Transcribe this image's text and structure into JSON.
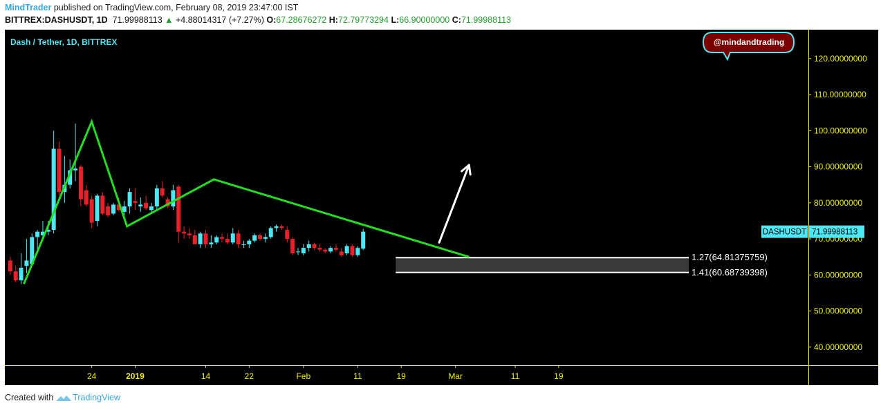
{
  "header": {
    "publisher": "MindTrader",
    "published_text": "published on TradingView.com, February 08, 2019 23:47:00 IST",
    "symbol": "BITTREX:DASHUSDT, 1D",
    "last": "71.99988113",
    "change": "+4.88014317 (+7.27%)",
    "o_label": "O:",
    "o_value": "67.28676272",
    "h_label": "H:",
    "h_value": "72.79773294",
    "l_label": "L:",
    "l_value": "66.90000000",
    "c_label": "C:",
    "c_value": "71.99988113"
  },
  "chart_title": "Dash / Tether, 1D, BITTREX",
  "badge": "@mindandtrading",
  "footer": {
    "created_with": "Created with",
    "brand": "TradingView"
  },
  "colors": {
    "background": "#000000",
    "up": "#4ee8f4",
    "down": "#e8202a",
    "trendline": "#22dd22",
    "axis_text": "#eeee00",
    "price_label_bg": "#4ee8f4",
    "badge_bg": "#7a0000",
    "badge_border": "#4ee8f4"
  },
  "chart_data": {
    "type": "candlestick",
    "symbol": "DASHUSDT",
    "ylim": [
      35,
      128
    ],
    "y_ticks": [
      {
        "value": 120,
        "label": "120.00000000"
      },
      {
        "value": 110,
        "label": "110.00000000"
      },
      {
        "value": 100,
        "label": "100.00000000"
      },
      {
        "value": 90,
        "label": "90.00000000"
      },
      {
        "value": 80,
        "label": "80.00000000"
      },
      {
        "value": 70,
        "label": "70.00000000"
      },
      {
        "value": 60,
        "label": "60.00000000"
      },
      {
        "value": 50,
        "label": "50.00000000"
      },
      {
        "value": 40,
        "label": "40.00000000"
      }
    ],
    "x_range": [
      -1,
      147
    ],
    "x_ticks": [
      {
        "x": 15,
        "label": "24",
        "bold": false
      },
      {
        "x": 23,
        "label": "2019",
        "bold": true
      },
      {
        "x": 36,
        "label": "14",
        "bold": false
      },
      {
        "x": 44,
        "label": "22",
        "bold": false
      },
      {
        "x": 54,
        "label": "Feb",
        "bold": false
      },
      {
        "x": 64,
        "label": "11",
        "bold": false
      },
      {
        "x": 72,
        "label": "19",
        "bold": false
      },
      {
        "x": 82,
        "label": "Mar",
        "bold": false
      },
      {
        "x": 93,
        "label": "11",
        "bold": false
      },
      {
        "x": 101,
        "label": "19",
        "bold": false
      }
    ],
    "candles": [
      [
        64.0,
        65.0,
        60.0,
        61.0
      ],
      [
        61.0,
        62.5,
        58.0,
        58.5
      ],
      [
        58.5,
        66.0,
        57.5,
        62.0
      ],
      [
        62.5,
        70.0,
        60.5,
        64.0
      ],
      [
        63.0,
        71.5,
        62.5,
        70.5
      ],
      [
        70.5,
        72.5,
        66.0,
        72.0
      ],
      [
        71.0,
        75.0,
        70.0,
        72.0
      ],
      [
        72.0,
        75.0,
        71.0,
        72.5
      ],
      [
        72.5,
        100.0,
        71.5,
        95.0
      ],
      [
        95.0,
        97.0,
        82.0,
        83.0
      ],
      [
        83.0,
        93.0,
        80.0,
        85.0
      ],
      [
        85.0,
        92.0,
        84.0,
        89.0
      ],
      [
        89.0,
        102.0,
        86.0,
        89.5
      ],
      [
        90.0,
        90.5,
        79.0,
        81.0
      ],
      [
        83.5,
        85.0,
        79.0,
        79.5
      ],
      [
        81.0,
        82.0,
        73.0,
        74.5
      ],
      [
        75.0,
        82.5,
        73.5,
        82.0
      ],
      [
        82.0,
        83.0,
        76.5,
        77.0
      ],
      [
        79.0,
        80.0,
        76.0,
        76.5
      ],
      [
        77.0,
        80.0,
        76.5,
        79.5
      ],
      [
        79.5,
        81.5,
        77.5,
        78.0
      ],
      [
        77.5,
        80.5,
        76.5,
        79.0
      ],
      [
        79.0,
        84.0,
        77.0,
        83.0
      ],
      [
        80.5,
        84.0,
        78.0,
        80.0
      ],
      [
        79.0,
        81.5,
        77.5,
        79.5
      ],
      [
        80.0,
        82.0,
        78.0,
        78.5
      ],
      [
        78.0,
        80.0,
        77.0,
        79.0
      ],
      [
        79.0,
        85.0,
        78.0,
        84.0
      ],
      [
        84.0,
        86.0,
        81.5,
        82.0
      ],
      [
        81.0,
        81.5,
        78.5,
        79.0
      ],
      [
        79.0,
        85.0,
        78.0,
        83.5
      ],
      [
        84.5,
        85.0,
        69.0,
        72.0
      ],
      [
        72.0,
        73.5,
        70.0,
        71.5
      ],
      [
        71.5,
        73.0,
        70.0,
        71.0
      ],
      [
        71.0,
        72.5,
        68.5,
        68.5
      ],
      [
        68.5,
        72.0,
        67.5,
        71.5
      ],
      [
        71.5,
        72.5,
        67.5,
        68.5
      ],
      [
        68.5,
        71.0,
        67.5,
        69.0
      ],
      [
        69.0,
        71.0,
        68.5,
        70.5
      ],
      [
        70.5,
        71.5,
        69.0,
        70.0
      ],
      [
        70.0,
        71.5,
        68.5,
        69.0
      ],
      [
        69.0,
        73.0,
        68.5,
        71.5
      ],
      [
        71.5,
        72.5,
        67.5,
        68.5
      ],
      [
        68.5,
        69.5,
        67.5,
        68.5
      ],
      [
        68.5,
        70.0,
        67.5,
        69.5
      ],
      [
        69.5,
        71.5,
        69.0,
        71.0
      ],
      [
        71.0,
        71.5,
        69.5,
        70.0
      ],
      [
        70.0,
        71.5,
        69.0,
        70.5
      ],
      [
        70.5,
        73.5,
        70.0,
        73.0
      ],
      [
        73.0,
        74.0,
        72.0,
        73.5
      ],
      [
        73.5,
        74.0,
        72.5,
        73.0
      ],
      [
        72.5,
        73.5,
        69.0,
        70.0
      ],
      [
        70.0,
        70.5,
        65.5,
        66.0
      ],
      [
        66.5,
        67.5,
        65.5,
        66.5
      ],
      [
        66.0,
        68.5,
        65.5,
        67.5
      ],
      [
        67.5,
        69.5,
        66.5,
        68.5
      ],
      [
        68.5,
        69.0,
        67.0,
        67.5
      ],
      [
        67.5,
        68.5,
        66.5,
        67.0
      ],
      [
        67.0,
        67.5,
        66.0,
        66.5
      ],
      [
        66.5,
        68.0,
        66.0,
        67.5
      ],
      [
        67.5,
        68.5,
        66.5,
        67.0
      ],
      [
        66.5,
        67.5,
        65.0,
        65.5
      ],
      [
        66.0,
        68.5,
        65.5,
        68.0
      ],
      [
        68.0,
        68.5,
        65.0,
        65.5
      ],
      [
        65.5,
        68.0,
        65.0,
        67.5
      ],
      [
        67.3,
        72.8,
        66.9,
        72.0
      ]
    ],
    "trendlines": [
      [
        [
          2.5,
          57.5
        ],
        [
          15,
          102.5
        ],
        [
          21.5,
          73.5
        ],
        [
          37.5,
          86.5
        ],
        [
          84.5,
          65.0
        ]
      ]
    ],
    "arrow": {
      "from": [
        79,
        69.0
      ],
      "to": [
        84.5,
        90.5
      ]
    },
    "fib_levels": [
      {
        "level": "1.27",
        "value": 64.81375759,
        "label": "1.27(64.81375759)"
      },
      {
        "level": "1.41",
        "value": 60.68739398,
        "label": "1.41(60.68739398)"
      }
    ],
    "fib_x_start": 71,
    "current_price": {
      "symbol": "DASHUSDT",
      "value": 71.99988113,
      "label": "DASHUSDT · 71.99988113"
    }
  }
}
